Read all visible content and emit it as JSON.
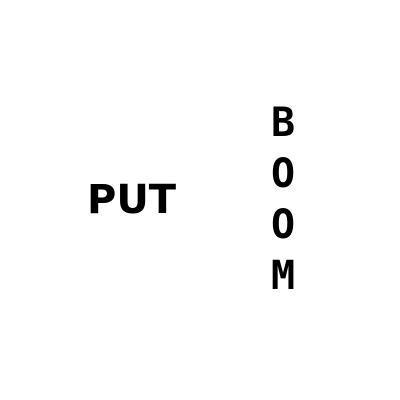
{
  "left_word": "PUT",
  "right_word": {
    "letters": [
      "B",
      "O",
      "O",
      "M"
    ]
  },
  "colors": {
    "background": "#ffffff",
    "text": "#000000"
  }
}
